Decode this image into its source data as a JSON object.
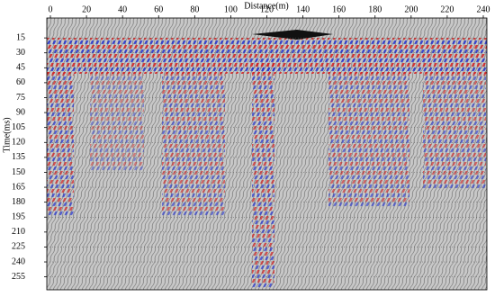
{
  "chart_data": {
    "type": "seismic-section",
    "x_label": "Distance(m)",
    "y_label": "Time(ms)",
    "xlim": [
      -2,
      242
    ],
    "xticks": [
      0,
      20,
      40,
      60,
      80,
      100,
      120,
      140,
      160,
      180,
      200,
      220,
      240
    ],
    "ylim": [
      -5,
      268
    ],
    "y_inverted": true,
    "yticks": [
      15,
      30,
      45,
      60,
      75,
      90,
      105,
      120,
      135,
      150,
      165,
      180,
      195,
      210,
      225,
      240,
      255
    ],
    "grid": true
  }
}
